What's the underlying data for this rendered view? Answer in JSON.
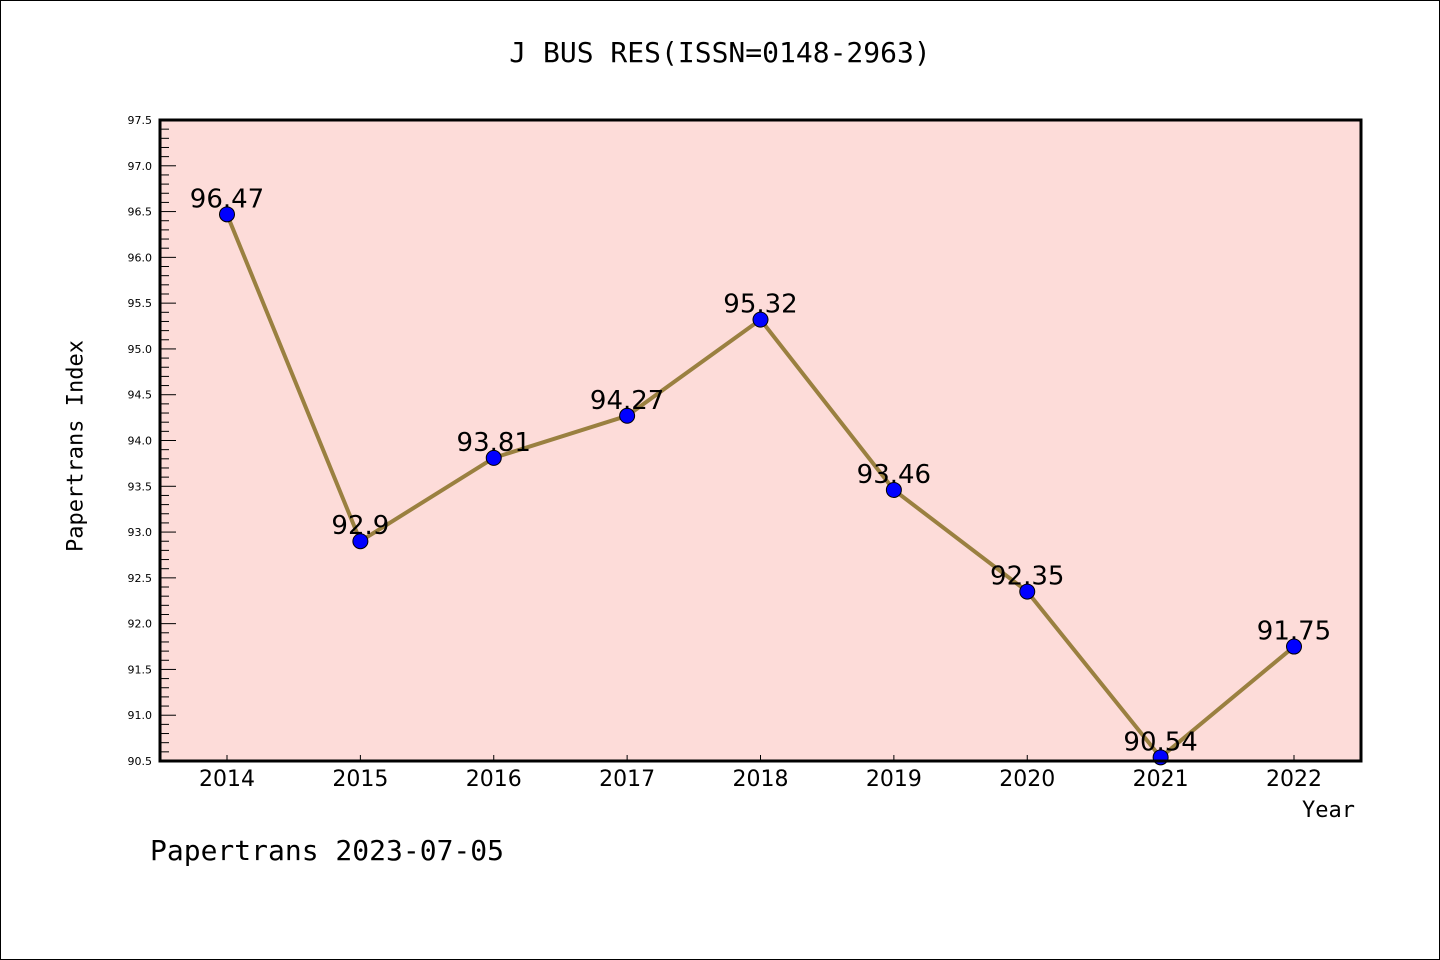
{
  "chart_data": {
    "type": "line",
    "title": "J BUS RES(ISSN=0148-2963)",
    "xlabel": "Year",
    "ylabel": "Papertrans Index",
    "categories": [
      "2014",
      "2015",
      "2016",
      "2017",
      "2018",
      "2019",
      "2020",
      "2021",
      "2022"
    ],
    "values": [
      96.47,
      92.9,
      93.81,
      94.27,
      95.32,
      93.46,
      92.35,
      90.54,
      91.75
    ],
    "data_labels": [
      "96.47",
      "92.9",
      "93.81",
      "94.27",
      "95.32",
      "93.46",
      "92.35",
      "90.54",
      "91.75"
    ],
    "ylim": [
      90.5,
      97.5
    ],
    "yticks": [
      "90.5",
      "91.0",
      "91.5",
      "92.0",
      "92.5",
      "93.0",
      "93.5",
      "94.0",
      "94.5",
      "95.0",
      "95.5",
      "96.0",
      "96.5",
      "97.0",
      "97.5"
    ],
    "grid": false,
    "colors": {
      "line": "#9a8040",
      "marker": "#0000ff",
      "background": "#fddcd9"
    }
  },
  "footer": "Papertrans 2023-07-05"
}
